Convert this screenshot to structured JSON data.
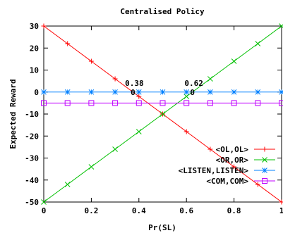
{
  "chart_data": {
    "type": "line",
    "title": "Centralised Policy",
    "xlabel": "Pr(SL)",
    "ylabel": "Expected Reward",
    "xlim": [
      0,
      1
    ],
    "ylim": [
      -50,
      30
    ],
    "xticks": [
      0,
      0.2,
      0.4,
      0.6,
      0.8,
      1
    ],
    "xtick_labels": [
      "0",
      "0.2",
      "0.4",
      "0.6",
      "0.8",
      "1"
    ],
    "yticks": [
      -50,
      -40,
      -30,
      -20,
      -10,
      0,
      10,
      20,
      30
    ],
    "ytick_labels": [
      "-50",
      "-40",
      "-30",
      "-20",
      "-10",
      "0",
      "10",
      "20",
      "30"
    ],
    "grid": false,
    "legend_position": "bottom-right",
    "x": [
      0,
      0.1,
      0.2,
      0.3,
      0.4,
      0.5,
      0.6,
      0.7,
      0.8,
      0.9,
      1.0
    ],
    "series": [
      {
        "name": "<OL,OL>",
        "color": "#ff0000",
        "marker": "plus",
        "values": [
          30,
          22,
          14,
          6,
          -2,
          -10,
          -18,
          -26,
          -34,
          -42,
          -50
        ]
      },
      {
        "name": "<OR,OR>",
        "color": "#00c000",
        "marker": "cross",
        "values": [
          -50,
          -42,
          -34,
          -26,
          -18,
          -10,
          -2,
          6,
          14,
          22,
          30
        ]
      },
      {
        "name": "<LISTEN,LISTEN>",
        "color": "#0080ff",
        "marker": "star",
        "values": [
          0,
          0,
          0,
          0,
          0,
          0,
          0,
          0,
          0,
          0,
          0
        ]
      },
      {
        "name": "<COM,COM>",
        "color": "#c000ff",
        "marker": "square",
        "values": [
          -5,
          -5,
          -5,
          -5,
          -5,
          -5,
          -5,
          -5,
          -5,
          -5,
          -5
        ]
      }
    ],
    "annotations": [
      {
        "text": "0.38",
        "x": 0.375,
        "y": 0,
        "point_label": "0"
      },
      {
        "text": "0.62",
        "x": 0.625,
        "y": 0,
        "point_label": "0"
      }
    ]
  }
}
